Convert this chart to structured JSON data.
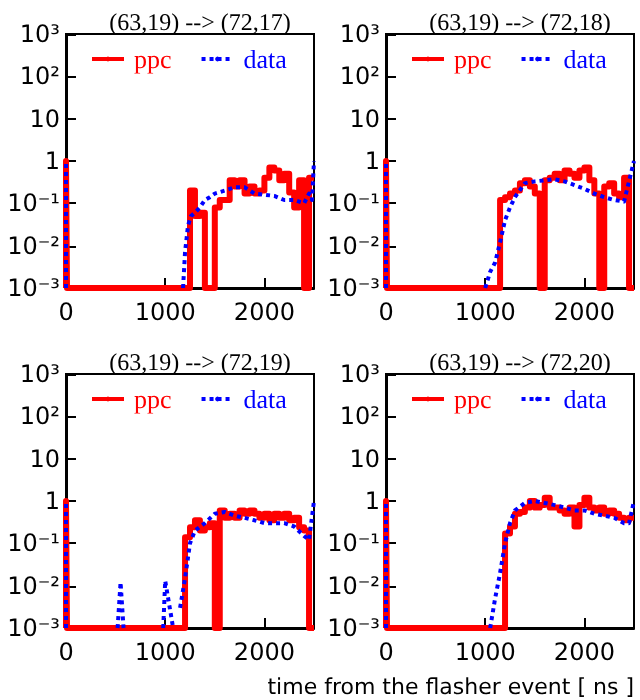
{
  "chart_data": [
    {
      "type": "line",
      "title": "(63,19) --> (72,17)",
      "log": "y",
      "grid": false,
      "legend": "top",
      "marker": "none",
      "xlim": [
        0,
        2500
      ],
      "xticks": [
        0,
        1000,
        2000
      ],
      "ylim": [
        0.001,
        1000
      ],
      "yticks": [
        {
          "value": 1000,
          "label": "10³"
        },
        {
          "value": 100,
          "label": "10²"
        },
        {
          "value": 10,
          "label": "10"
        },
        {
          "value": 1,
          "label": "1"
        },
        {
          "value": 0.1,
          "label": "10⁻¹"
        },
        {
          "value": 0.01,
          "label": "10⁻²"
        },
        {
          "value": 0.001,
          "label": "10⁻³"
        }
      ],
      "series": [
        {
          "name": "ppc",
          "type": "step",
          "color": "#ff0000",
          "line_style": "solid",
          "x": [
            0,
            0,
            10,
            1250,
            1300,
            1350,
            1400,
            1500,
            1550,
            1650,
            1700,
            1750,
            1800,
            1850,
            1900,
            1950,
            2000,
            2050,
            2100,
            2150,
            2200,
            2250,
            2300,
            2350,
            2400,
            2450,
            2500
          ],
          "values": [
            0.001,
            1,
            0.001,
            0.2,
            0.05,
            0.06,
            0.001,
            0.08,
            0.12,
            0.35,
            0.25,
            0.35,
            0.17,
            0.25,
            0.17,
            0.2,
            0.4,
            0.7,
            0.6,
            0.35,
            0.5,
            0.18,
            0.08,
            0.35,
            0.001,
            0.4,
            0.4
          ]
        },
        {
          "name": "data",
          "color": "#0000ff",
          "line_style": "dotted",
          "x": [
            0,
            0,
            10,
            1180,
            1200,
            1230,
            1260,
            1300,
            1350,
            1400,
            1450,
            1500,
            1600,
            1700,
            1800,
            1900,
            2000,
            2100,
            2200,
            2300,
            2400,
            2450,
            2480,
            2500
          ],
          "values": [
            0.001,
            1,
            null,
            0.001,
            0.007,
            0.03,
            0.05,
            0.06,
            0.08,
            0.12,
            0.14,
            0.17,
            0.2,
            0.24,
            0.24,
            0.17,
            0.16,
            0.15,
            0.12,
            0.12,
            0.1,
            0.17,
            0.12,
            1
          ]
        }
      ]
    },
    {
      "type": "line",
      "title": "(63,19) --> (72,18)",
      "log": "y",
      "grid": false,
      "legend": "top",
      "marker": "none",
      "xlim": [
        0,
        2500
      ],
      "xticks": [
        0,
        1000,
        2000
      ],
      "ylim": [
        0.001,
        1000
      ],
      "yticks": [
        {
          "value": 1000,
          "label": "10³"
        },
        {
          "value": 100,
          "label": "10²"
        },
        {
          "value": 10,
          "label": "10"
        },
        {
          "value": 1,
          "label": "1"
        },
        {
          "value": 0.1,
          "label": "10⁻¹"
        },
        {
          "value": 0.01,
          "label": "10⁻²"
        },
        {
          "value": 0.001,
          "label": "10⁻³"
        }
      ],
      "series": [
        {
          "name": "ppc",
          "type": "step",
          "color": "#ff0000",
          "line_style": "solid",
          "x": [
            0,
            0,
            10,
            1150,
            1200,
            1250,
            1300,
            1350,
            1400,
            1450,
            1500,
            1550,
            1600,
            1650,
            1700,
            1750,
            1800,
            1850,
            1900,
            1950,
            2000,
            2050,
            2100,
            2150,
            2200,
            2250,
            2300,
            2350,
            2400,
            2450,
            2500
          ],
          "values": [
            0.001,
            1,
            0.001,
            0.12,
            0.14,
            0.17,
            0.2,
            0.3,
            0.35,
            0.25,
            0.17,
            0.001,
            0.35,
            0.4,
            0.5,
            0.35,
            0.6,
            0.5,
            0.4,
            0.6,
            0.7,
            0.35,
            0.17,
            0.001,
            0.25,
            0.3,
            0.17,
            0.14,
            0.4,
            0.001,
            0.001
          ]
        },
        {
          "name": "data",
          "color": "#0000ff",
          "line_style": "dotted",
          "x": [
            0,
            0,
            10,
            1000,
            1050,
            1100,
            1150,
            1200,
            1250,
            1300,
            1400,
            1500,
            1600,
            1700,
            1800,
            1900,
            2000,
            2100,
            2200,
            2300,
            2400,
            2500
          ],
          "values": [
            0.001,
            1,
            null,
            0.001,
            0.0024,
            0.004,
            0.012,
            0.04,
            0.08,
            0.14,
            0.3,
            0.33,
            0.35,
            0.37,
            0.33,
            0.27,
            0.22,
            0.17,
            0.14,
            0.12,
            0.11,
            1
          ]
        }
      ]
    },
    {
      "type": "line",
      "title": "(63,19) --> (72,19)",
      "log": "y",
      "grid": false,
      "legend": "top",
      "marker": "none",
      "xlim": [
        0,
        2500
      ],
      "xticks": [
        0,
        1000,
        2000
      ],
      "ylim": [
        0.001,
        1000
      ],
      "yticks": [
        {
          "value": 1000,
          "label": "10³"
        },
        {
          "value": 100,
          "label": "10²"
        },
        {
          "value": 10,
          "label": "10"
        },
        {
          "value": 1,
          "label": "1"
        },
        {
          "value": 0.1,
          "label": "10⁻¹"
        },
        {
          "value": 0.01,
          "label": "10⁻²"
        },
        {
          "value": 0.001,
          "label": "10⁻³"
        }
      ],
      "series": [
        {
          "name": "ppc",
          "type": "step",
          "color": "#ff0000",
          "line_style": "solid",
          "x": [
            0,
            0,
            10,
            1200,
            1250,
            1300,
            1350,
            1400,
            1450,
            1500,
            1550,
            1600,
            1650,
            1700,
            1750,
            1800,
            1850,
            1900,
            1950,
            2000,
            2050,
            2100,
            2150,
            2200,
            2250,
            2300,
            2350,
            2400,
            2450,
            2500
          ],
          "values": [
            0.001,
            1,
            0.001,
            0.14,
            0.24,
            0.35,
            0.2,
            0.24,
            0.3,
            0.001,
            0.6,
            0.4,
            0.5,
            0.4,
            0.6,
            0.5,
            0.6,
            0.5,
            0.4,
            0.5,
            0.35,
            0.5,
            0.4,
            0.5,
            0.35,
            0.4,
            0.24,
            0.2,
            0.001,
            0.001
          ]
        },
        {
          "name": "data",
          "color": "#0000ff",
          "line_style": "dotted",
          "x": [
            0,
            0,
            10,
            520,
            550,
            580,
            600,
            980,
            1000,
            1030,
            1080,
            1100,
            1150,
            1200,
            1250,
            1300,
            1400,
            1500,
            1600,
            1700,
            1800,
            1900,
            2000,
            2100,
            2200,
            2300,
            2400,
            2450,
            2500
          ],
          "values": [
            0.001,
            1,
            null,
            0.001,
            0.012,
            0.001,
            null,
            0.001,
            0.013,
            0.005,
            0.001,
            null,
            0.003,
            0.015,
            0.1,
            0.2,
            0.3,
            0.5,
            0.55,
            0.45,
            0.4,
            0.35,
            0.3,
            0.3,
            0.3,
            0.25,
            0.15,
            0.12,
            1
          ]
        }
      ]
    },
    {
      "type": "line",
      "title": "(63,19) --> (72,20)",
      "xlabel": "time from the flasher event [ ns ]",
      "log": "y",
      "grid": false,
      "legend": "top",
      "marker": "none",
      "xlim": [
        0,
        2500
      ],
      "xticks": [
        0,
        1000,
        2000
      ],
      "ylim": [
        0.001,
        1000
      ],
      "yticks": [
        {
          "value": 1000,
          "label": "10³"
        },
        {
          "value": 100,
          "label": "10²"
        },
        {
          "value": 10,
          "label": "10"
        },
        {
          "value": 1,
          "label": "1"
        },
        {
          "value": 0.1,
          "label": "10⁻¹"
        },
        {
          "value": 0.01,
          "label": "10⁻²"
        },
        {
          "value": 0.001,
          "label": "10⁻³"
        }
      ],
      "series": [
        {
          "name": "ppc",
          "type": "step",
          "color": "#ff0000",
          "line_style": "solid",
          "x": [
            0,
            0,
            10,
            1200,
            1250,
            1300,
            1350,
            1400,
            1450,
            1500,
            1550,
            1600,
            1650,
            1700,
            1750,
            1800,
            1850,
            1900,
            1950,
            2000,
            2050,
            2100,
            2150,
            2200,
            2250,
            2300,
            2350,
            2400,
            2450,
            2500
          ],
          "values": [
            0.001,
            1,
            0.001,
            0.17,
            0.25,
            0.5,
            0.55,
            0.7,
            1,
            0.7,
            0.8,
            1.2,
            0.7,
            0.7,
            0.6,
            0.5,
            0.7,
            0.25,
            0.8,
            1.2,
            0.7,
            0.6,
            0.7,
            0.5,
            0.6,
            0.5,
            0.4,
            0.35,
            0.4,
            0.4
          ]
        },
        {
          "name": "data",
          "color": "#0000ff",
          "line_style": "dotted",
          "x": [
            0,
            0,
            10,
            1050,
            1100,
            1150,
            1200,
            1250,
            1300,
            1400,
            1500,
            1600,
            1700,
            1800,
            1900,
            2000,
            2100,
            2200,
            2300,
            2400,
            2450,
            2500
          ],
          "values": [
            0.001,
            1,
            null,
            0.001,
            0.005,
            0.02,
            0.1,
            0.3,
            0.6,
            0.9,
            1,
            0.9,
            0.8,
            0.7,
            0.6,
            0.6,
            0.5,
            0.45,
            0.4,
            0.3,
            0.3,
            1
          ]
        }
      ]
    }
  ]
}
